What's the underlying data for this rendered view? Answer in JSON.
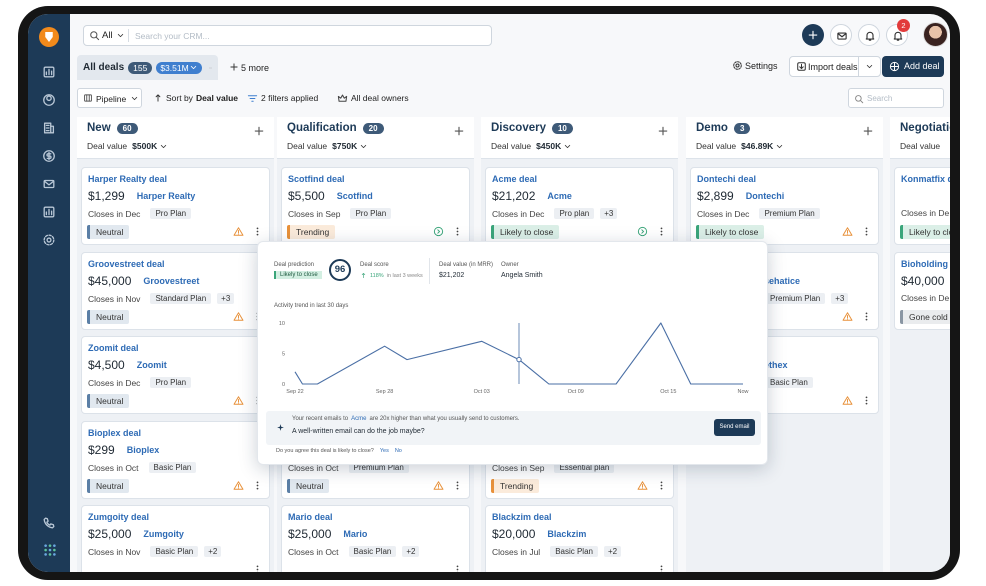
{
  "search": {
    "scope": "All",
    "placeholder": "Search your CRM..."
  },
  "notification_count": "2",
  "tab": {
    "label": "All deals",
    "count": "155",
    "value": "$3.51M",
    "more": "5 more"
  },
  "actions": {
    "settings": "Settings",
    "import": "Import deals",
    "add": "Add deal"
  },
  "filters": {
    "pipeline": "Pipeline",
    "sort_prefix": "Sort by",
    "sort_field": "Deal value",
    "applied": "2 filters applied",
    "owners": "All deal owners",
    "search": "Search"
  },
  "columns": [
    {
      "name": "New",
      "count": "60",
      "value_label": "Deal value",
      "value": "$500K",
      "cards": [
        {
          "name": "Harper Realty deal",
          "amount": "$1,299",
          "company": "Harper Realty",
          "closes": "Closes in Dec",
          "plan": "Pro Plan",
          "status": "Neutral",
          "status_color": "#5b7fa6",
          "icon": "warning"
        },
        {
          "name": "Groovestreet deal",
          "amount": "$45,000",
          "company": "Groovestreet",
          "closes": "Closes in Nov",
          "plan": "Standard Plan",
          "extra": "+3",
          "status": "Neutral",
          "status_color": "#5b7fa6",
          "icon": "warning"
        },
        {
          "name": "Zoomit deal",
          "amount": "$4,500",
          "company": "Zoomit",
          "closes": "Closes in Dec",
          "plan": "Pro Plan",
          "status": "Neutral",
          "status_color": "#5b7fa6",
          "icon": "warning"
        },
        {
          "name": "Bioplex deal",
          "amount": "$299",
          "company": "Bioplex",
          "closes": "Closes in Oct",
          "plan": "Basic Plan",
          "status": "Neutral",
          "status_color": "#5b7fa6",
          "icon": "warning"
        },
        {
          "name": "Zumgoity deal",
          "amount": "$25,000",
          "company": "Zumgoity",
          "closes": "Closes in Nov",
          "plan": "Basic Plan",
          "extra": "+2"
        }
      ]
    },
    {
      "name": "Qualification",
      "count": "20",
      "value_label": "Deal value",
      "value": "$750K",
      "cards": [
        {
          "name": "Scotfind deal",
          "amount": "$5,500",
          "company": "Scotfind",
          "closes": "Closes in Sep",
          "plan": "Pro Plan",
          "status": "Trending",
          "status_color": "#e8913a",
          "icon": "next"
        },
        {},
        {},
        {
          "closes": "Closes in Oct",
          "plan": "Premium Plan",
          "status": "Neutral",
          "status_color": "#5b7fa6",
          "icon": "warning"
        },
        {
          "name": "Mario deal",
          "amount": "$25,000",
          "company": "Mario",
          "closes": "Closes in Oct",
          "plan": "Basic Plan",
          "extra": "+2"
        }
      ]
    },
    {
      "name": "Discovery",
      "count": "10",
      "value_label": "Deal value",
      "value": "$450K",
      "cards": [
        {
          "name": "Acme deal",
          "amount": "$21,202",
          "company": "Acme",
          "closes": "Closes in Dec",
          "plan": "Pro plan",
          "extra": "+3",
          "status": "Likely to close",
          "status_color": "#3aa57a",
          "icon": "next"
        },
        {},
        {},
        {
          "closes": "Closes in Sep",
          "plan": "Essential plan",
          "status": "Trending",
          "status_color": "#e8913a",
          "icon": "warning"
        },
        {
          "name": "Blackzim deal",
          "amount": "$20,000",
          "company": "Blackzim",
          "closes": "Closes in Jul",
          "plan": "Basic Plan",
          "extra": "+2"
        }
      ]
    },
    {
      "name": "Demo",
      "count": "3",
      "value_label": "Deal value",
      "value": "$46.89K",
      "cards": [
        {
          "name": "Dontechi deal",
          "amount": "$2,899",
          "company": "Dontechi",
          "closes": "Closes in Dec",
          "plan": "Premium Plan",
          "status": "Likely to close",
          "status_color": "#3aa57a",
          "icon": "warning"
        },
        {
          "company": "asehatice",
          "plan": "Premium Plan",
          "extra": "+3",
          "icon": "warning"
        },
        {
          "company": "eethex",
          "plan": "Basic Plan",
          "icon": "warning"
        }
      ]
    },
    {
      "name": "Negotiatio",
      "value_label": "Deal value",
      "cards": [
        {
          "name": "Konmatfix de",
          "closes": "Closes in De",
          "status": "Likely to clo",
          "status_color": "#3aa57a"
        },
        {
          "name": "Bioholding de",
          "amount": "$40,000",
          "closes": "Closes in De",
          "status": "Gone cold",
          "status_color": "#8a96a3"
        }
      ]
    }
  ],
  "popup": {
    "prediction_label": "Deal prediction",
    "prediction": "Likely to close",
    "score": 96,
    "score_label": "Deal score",
    "score_change": "118%",
    "score_change_period": "in last 3 weeks",
    "mrr_label": "Deal value (in MRR)",
    "mrr": "$21,202",
    "owner_label": "Owner",
    "owner": "Angela Smith",
    "chart": {
      "type": "line",
      "title": "Activity trend in last 30 days",
      "color": "#4a6fa5",
      "grid": false,
      "x": [
        0,
        0.5,
        1.5,
        6,
        7.5,
        12.5,
        15,
        17,
        21.5,
        24.5,
        26.5,
        30
      ],
      "values": [
        2,
        0,
        0,
        6.2,
        4,
        7,
        4,
        0,
        0,
        10,
        0,
        0
      ],
      "xlim": [
        0,
        30
      ],
      "ylim": [
        0,
        10
      ],
      "yticks": [
        0,
        5,
        10
      ],
      "xticks": [
        {
          "value": 0,
          "label": "Sep 22"
        },
        {
          "value": 6,
          "label": "Sep 28"
        },
        {
          "value": 12.5,
          "label": "Oct 03"
        },
        {
          "value": 18.8,
          "label": "Oct 09"
        },
        {
          "value": 25,
          "label": "Oct 15"
        },
        {
          "value": 30,
          "label": "Now"
        }
      ]
    },
    "insight": {
      "before": "Your recent emails to",
      "company": "Acme",
      "after": "are 20x higher than what you usually send to customers.",
      "question": "A well-written email can do the job maybe?",
      "button": "Send email"
    },
    "feedback": {
      "question": "Do you agree this deal is likely to close?",
      "yes": "Yes",
      "no": "No"
    }
  }
}
